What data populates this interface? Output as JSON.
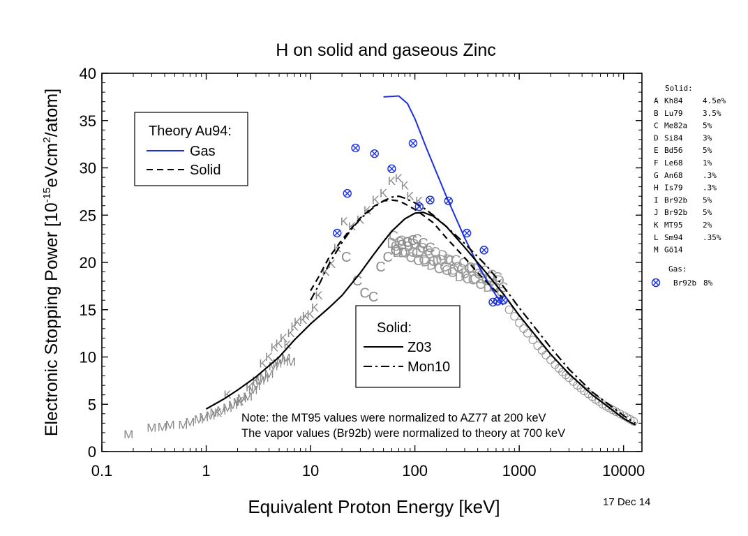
{
  "chart_data": {
    "type": "scatter",
    "title": "H on solid and gaseous Zinc",
    "xlabel": "Equivalent Proton Energy [keV]",
    "ylabel_main": "Electronic Stopping Power [10",
    "ylabel_sup1": "-15",
    "ylabel_mid": "eVcm",
    "ylabel_sup2": "2",
    "ylabel_end": "/atom]",
    "date": "17 Dec 14",
    "x_scale": "log",
    "xlim": [
      0.1,
      15000
    ],
    "ylim": [
      0,
      40
    ],
    "x_ticks": [
      {
        "v": 0.1,
        "label": "0.1"
      },
      {
        "v": 1,
        "label": "1"
      },
      {
        "v": 10,
        "label": "10"
      },
      {
        "v": 100,
        "label": "100"
      },
      {
        "v": 1000,
        "label": "1000"
      },
      {
        "v": 10000,
        "label": "10000"
      }
    ],
    "y_ticks": [
      {
        "v": 0,
        "label": "0"
      },
      {
        "v": 5,
        "label": "5"
      },
      {
        "v": 10,
        "label": "10"
      },
      {
        "v": 15,
        "label": "15"
      },
      {
        "v": 20,
        "label": "20"
      },
      {
        "v": 25,
        "label": "25"
      },
      {
        "v": 30,
        "label": "30"
      },
      {
        "v": 35,
        "label": "35"
      },
      {
        "v": 40,
        "label": "40"
      }
    ],
    "theory_legend": {
      "title": "Theory Au94:",
      "gas": "Gas",
      "solid": "Solid"
    },
    "solid_legend": {
      "title": "Solid:",
      "z03": "Z03",
      "mon10": "Mon10"
    },
    "note_line1": "Note: the MT95 values were normalized to AZ77 at 200 keV",
    "note_line2": "The vapor values (Br92b) were normalized to theory at 700 keV",
    "ref_legend": {
      "solid_title": "Solid:",
      "gas_title": "Gas:",
      "solid_entries": [
        {
          "letter": "A",
          "ref": "Kh84",
          "err": "4.5e%"
        },
        {
          "letter": "B",
          "ref": "Lu79",
          "err": "3.5%"
        },
        {
          "letter": "C",
          "ref": "Me82a",
          "err": "5%"
        },
        {
          "letter": "D",
          "ref": "Si84",
          "err": "3%"
        },
        {
          "letter": "E",
          "ref": "Bd56",
          "err": "5%"
        },
        {
          "letter": "F",
          "ref": "Le68",
          "err": "1%"
        },
        {
          "letter": "G",
          "ref": "An68",
          "err": ".3%"
        },
        {
          "letter": "H",
          "ref": "Is79",
          "err": ".3%"
        },
        {
          "letter": "I",
          "ref": "Br92b",
          "err": "5%"
        },
        {
          "letter": "J",
          "ref": "Br92b",
          "err": "5%"
        },
        {
          "letter": "K",
          "ref": "MT95",
          "err": "2%"
        },
        {
          "letter": "L",
          "ref": "Sm94",
          "err": ".35%"
        },
        {
          "letter": "M",
          "ref": "Gö14",
          "err": ""
        }
      ],
      "gas_entry": {
        "ref": "Br92b",
        "err": "8%"
      }
    },
    "series": [
      {
        "key": "theory_gas",
        "color": "#1a2fe0",
        "style": "solid",
        "x": [
          50,
          70,
          85,
          100,
          130,
          200,
          300,
          400,
          500,
          600,
          700
        ],
        "y": [
          37.5,
          37.6,
          36.8,
          35.2,
          32.0,
          27.0,
          22.6,
          19.8,
          17.9,
          16.5,
          15.5
        ]
      },
      {
        "key": "theory_solid",
        "color": "#000000",
        "style": "dashed",
        "x": [
          10,
          12,
          15,
          20,
          25,
          30,
          40,
          50,
          60,
          70,
          80,
          100,
          120,
          150,
          200,
          300,
          400,
          500,
          700
        ],
        "y": [
          17.0,
          18.5,
          20.5,
          22.4,
          23.7,
          24.7,
          25.9,
          26.5,
          26.6,
          26.5,
          26.2,
          25.6,
          25.0,
          24.2,
          22.6,
          20.5,
          18.9,
          17.8,
          16.2
        ]
      },
      {
        "key": "z03",
        "color": "#000000",
        "style": "solid",
        "x": [
          1,
          1.5,
          2,
          3,
          5,
          7,
          10,
          15,
          20,
          30,
          40,
          50,
          60,
          80,
          100,
          120,
          150,
          200,
          300,
          500,
          700,
          1000,
          2000,
          3000,
          5000,
          10000,
          13000
        ],
        "y": [
          4.5,
          5.6,
          6.5,
          7.9,
          10.0,
          11.8,
          13.5,
          15.2,
          16.5,
          18.9,
          20.8,
          22.2,
          23.3,
          24.6,
          25.2,
          25.3,
          24.9,
          23.8,
          21.6,
          18.7,
          16.7,
          14.4,
          10.3,
          8.2,
          6.0,
          3.5,
          2.8
        ]
      },
      {
        "key": "mon10",
        "color": "#000000",
        "style": "dashdot",
        "x": [
          10,
          12,
          15,
          20,
          25,
          30,
          40,
          50,
          60,
          70,
          80,
          100,
          120,
          150,
          200,
          300,
          400,
          500,
          700,
          1000,
          2000,
          3000,
          5000,
          10000,
          13000
        ],
        "y": [
          16.0,
          17.6,
          19.8,
          22.1,
          23.6,
          24.6,
          25.8,
          26.5,
          26.9,
          27.0,
          26.8,
          26.3,
          25.8,
          25.0,
          23.8,
          22.0,
          20.6,
          19.5,
          17.5,
          15.2,
          11.0,
          8.7,
          6.3,
          3.8,
          3.0
        ]
      }
    ],
    "gas_points": {
      "color": "#1a2fe0",
      "x": [
        18,
        22.5,
        27,
        41,
        60,
        96,
        110,
        140,
        210,
        315,
        460,
        560,
        620,
        705
      ],
      "y": [
        23.1,
        27.3,
        32.1,
        31.5,
        29.9,
        32.6,
        25.9,
        26.6,
        26.5,
        23.1,
        21.3,
        15.8,
        15.9,
        16.0
      ]
    },
    "k_points": {
      "x": [
        1.3,
        1.6,
        2.1,
        2.6,
        3.0,
        3.5,
        4.0,
        4.5,
        5.0,
        5.5,
        6.0,
        6.5,
        7.0,
        7.5,
        8.5,
        9.0,
        10,
        11,
        12,
        14,
        16,
        18,
        21,
        25,
        30,
        35,
        42,
        50,
        60,
        70,
        80,
        90,
        110
      ],
      "y": [
        4.1,
        6.0,
        5.3,
        6.8,
        7.5,
        9.3,
        10.0,
        11.0,
        11.4,
        12.0,
        11.3,
        12.5,
        13.2,
        13.7,
        13.9,
        14.3,
        14.5,
        15.2,
        16.5,
        19.0,
        19.8,
        21.5,
        24.3,
        23.8,
        24.5,
        25.5,
        26.6,
        27.3,
        28.6,
        28.9,
        28.1,
        27.0,
        26.5
      ]
    },
    "m_points": {
      "x": [
        0.18,
        0.3,
        0.38,
        0.45,
        0.6,
        0.7,
        0.85,
        0.95,
        1.1,
        1.2,
        1.4,
        1.6,
        1.8,
        2.0,
        2.2,
        2.5,
        2.8,
        3.0,
        3.3,
        3.6,
        4.0,
        4.4,
        4.8,
        5.2,
        5.8,
        6.5
      ],
      "y": [
        1.8,
        2.5,
        2.6,
        2.8,
        2.8,
        3.1,
        3.4,
        3.6,
        3.8,
        4.1,
        4.3,
        4.6,
        4.9,
        5.2,
        5.6,
        5.8,
        6.5,
        6.9,
        7.5,
        7.8,
        8.2,
        9.0,
        9.3,
        9.6,
        9.9,
        9.5
      ]
    },
    "c_points": {
      "x": [
        22,
        28,
        33,
        40,
        47,
        55,
        65,
        75,
        85,
        95,
        105,
        120,
        140
      ],
      "y": [
        20.5,
        18.0,
        16.7,
        16.3,
        19.5,
        20.5,
        21.2,
        21.8,
        22.1,
        22.3,
        22.4,
        22.0,
        21.5
      ]
    },
    "c_outlier": {
      "x": 28,
      "y": 16.3
    },
    "circle_points": {
      "x": [
        700,
        800,
        900,
        1000,
        1100,
        1200,
        1350,
        1500,
        1650,
        1800,
        2000,
        2200,
        2400,
        2600,
        2800,
        3000,
        3300,
        3600,
        3900,
        4200,
        4600,
        5000,
        5400,
        5800,
        6300,
        6800,
        7300,
        7900,
        8500,
        9200,
        10000,
        10800,
        11600,
        12500
      ],
      "y": [
        16.1,
        15.0,
        14.3,
        13.6,
        13.0,
        12.5,
        11.8,
        11.2,
        10.7,
        10.2,
        9.7,
        9.2,
        8.8,
        8.4,
        8.1,
        7.8,
        7.4,
        7.0,
        6.7,
        6.4,
        6.1,
        5.8,
        5.5,
        5.3,
        5.0,
        4.8,
        4.6,
        4.4,
        4.2,
        4.0,
        3.8,
        3.6,
        3.4,
        3.2
      ]
    },
    "dense_cluster": {
      "x_start": 60,
      "x_end": 700,
      "count": 60,
      "y_start": 22.0,
      "y_end": 17.5
    }
  }
}
